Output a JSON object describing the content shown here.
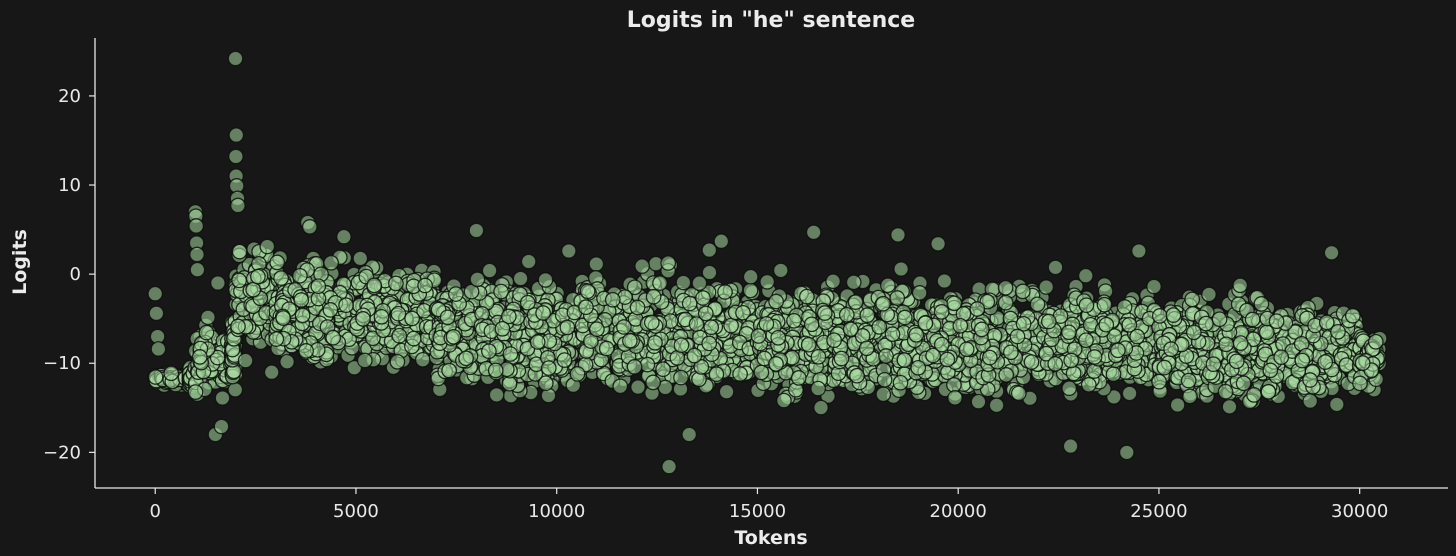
{
  "chart_data": {
    "type": "scatter",
    "title": "Logits in \"he\" sentence",
    "xlabel": "Tokens",
    "ylabel": "Logits",
    "xlim": [
      -1500,
      32200
    ],
    "ylim": [
      -24,
      26.5
    ],
    "xticks": [
      0,
      5000,
      10000,
      15000,
      20000,
      25000,
      30000
    ],
    "yticks": [
      -20,
      -10,
      0,
      10,
      20
    ],
    "ytick_labels": [
      "−20",
      "−10",
      "0",
      "10",
      "20"
    ],
    "grid": false,
    "colors": {
      "background": "#171717",
      "marker_fill": "#a8d8a0",
      "marker_edge": "#0b0f0b",
      "axis": "#e8e8e8",
      "text": "#ececec"
    },
    "series": [
      {
        "note_points": "Approximately 30,500 points (one per vocabulary token). Values summarised below by token-index segments with the approximate logit band; notable individual outliers listed explicitly.",
        "segments": [
          {
            "x": [
              0,
              850
            ],
            "y_center": -11.8,
            "y_spread": 0.9
          },
          {
            "x": [
              850,
              1000
            ],
            "y_center": -11.5,
            "y_spread": 1.5
          },
          {
            "x": [
              1000,
              1900
            ],
            "y_center": -9.5,
            "y_spread": 5.5
          },
          {
            "x": [
              1900,
              2000
            ],
            "y_center": -8.5,
            "y_spread": 5.5
          },
          {
            "x": [
              2000,
              3000
            ],
            "y_center": -2.5,
            "y_spread": 7.5
          },
          {
            "x": [
              3000,
              7000
            ],
            "y_center": -4.5,
            "y_spread": 8.0
          },
          {
            "x": [
              7000,
              15000
            ],
            "y_center": -6.5,
            "y_spread": 8.5
          },
          {
            "x": [
              15000,
              25000
            ],
            "y_center": -7.5,
            "y_spread": 8.5
          },
          {
            "x": [
              25000,
              30000
            ],
            "y_center": -8.5,
            "y_spread": 8.0
          },
          {
            "x": [
              30000,
              30500
            ],
            "y_center": -9.5,
            "y_spread": 4.5
          }
        ],
        "outliers": [
          [
            0,
            -2.2
          ],
          [
            30,
            -4.4
          ],
          [
            60,
            -7.0
          ],
          [
            80,
            -8.4
          ],
          [
            1000,
            7.0
          ],
          [
            1010,
            6.5
          ],
          [
            1020,
            5.4
          ],
          [
            1030,
            3.5
          ],
          [
            1040,
            2.2
          ],
          [
            1050,
            0.5
          ],
          [
            1560,
            -1.0
          ],
          [
            1500,
            -18.0
          ],
          [
            1650,
            -17.1
          ],
          [
            2000,
            24.2
          ],
          [
            2020,
            15.6
          ],
          [
            2010,
            13.2
          ],
          [
            2015,
            11.0
          ],
          [
            2030,
            9.9
          ],
          [
            2050,
            8.5
          ],
          [
            2060,
            7.7
          ],
          [
            2250,
            -9.7
          ],
          [
            2900,
            -11.0
          ],
          [
            3800,
            5.8
          ],
          [
            3850,
            5.3
          ],
          [
            4700,
            4.2
          ],
          [
            8000,
            4.9
          ],
          [
            10300,
            2.6
          ],
          [
            12800,
            -21.6
          ],
          [
            13300,
            -18.0
          ],
          [
            13800,
            2.7
          ],
          [
            14100,
            3.7
          ],
          [
            16400,
            4.7
          ],
          [
            18500,
            4.4
          ],
          [
            19500,
            3.4
          ],
          [
            22800,
            -19.3
          ],
          [
            24200,
            -20.0
          ],
          [
            24500,
            2.6
          ],
          [
            29300,
            2.4
          ]
        ]
      }
    ]
  }
}
